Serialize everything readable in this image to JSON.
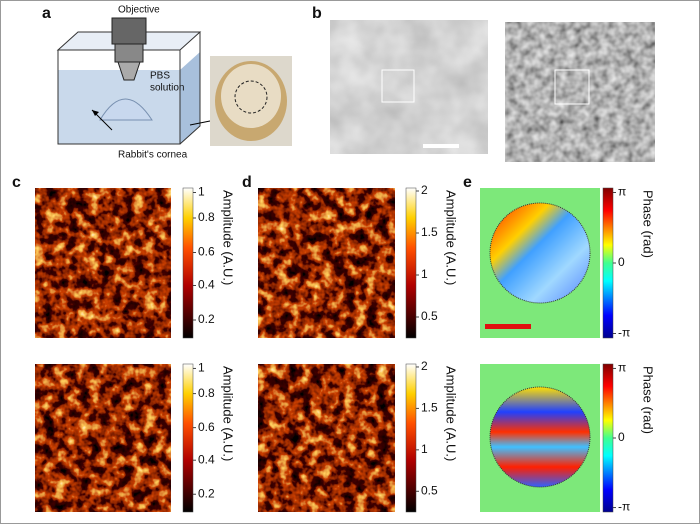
{
  "panels": {
    "a": {
      "label": "a",
      "objective": "Objective",
      "pbs": [
        "PBS",
        "solution"
      ],
      "cornea": "Rabbit's cornea"
    },
    "b": {
      "label": "b"
    },
    "c": {
      "label": "c",
      "colorbar_label": "Amplitude (A.U.)",
      "ticks": [
        "1",
        "0.8",
        "0.6",
        "0.4",
        "0.2"
      ]
    },
    "d": {
      "label": "d",
      "colorbar_label": "Amplitude (A.U.)",
      "ticks": [
        "2",
        "1.5",
        "1",
        "0.5"
      ]
    },
    "e": {
      "label": "e",
      "colorbar_label": "Phase (rad)",
      "ticks": [
        "π",
        "0",
        "-π"
      ]
    }
  }
}
